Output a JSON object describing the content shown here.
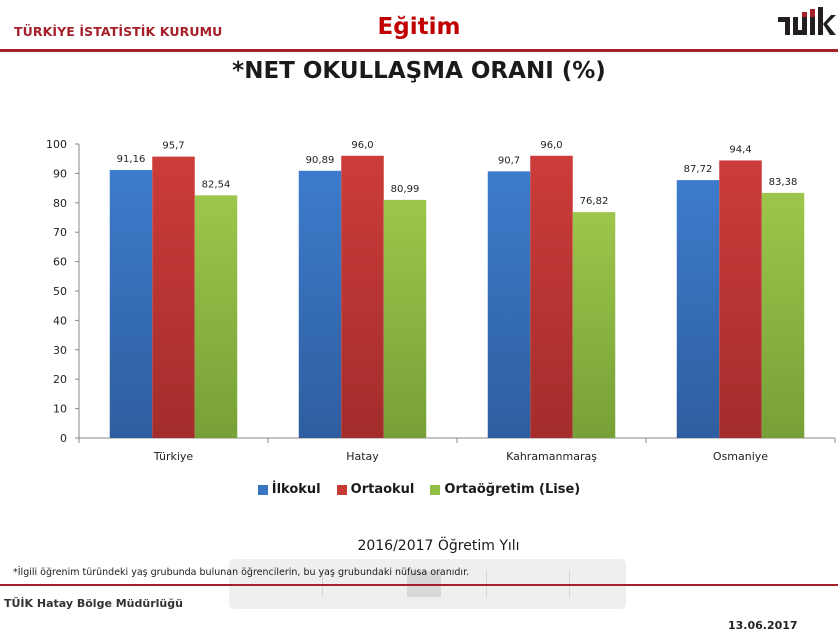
{
  "header": {
    "organization": "TÜRKİYE İSTATİSTİK KURUMU",
    "section": "Eğitim",
    "logo_text": "TÜİK"
  },
  "colors": {
    "accent": "#a6202a",
    "section_title": "#c00000",
    "series_ilkokul": "#3a75c4",
    "series_ortaokul": "#c83a38",
    "series_ortaogretim": "#93be45"
  },
  "chart_data": {
    "type": "bar",
    "title": "*NET OKULLAŞMA ORANI (%)",
    "subtitle": "2016/2017 Öğretim Yılı",
    "xlabel": "",
    "ylabel": "",
    "ylim": [
      0,
      100
    ],
    "yticks": [
      "0",
      "10",
      "20",
      "30",
      "40",
      "50",
      "60",
      "70",
      "80",
      "90",
      "100"
    ],
    "grid": false,
    "legend_position": "bottom",
    "categories": [
      "Türkiye",
      "Hatay",
      "Kahramanmaraş",
      "Osmaniye"
    ],
    "series": [
      {
        "name": "İlkokul",
        "values": [
          91.16,
          90.89,
          90.7,
          87.72
        ],
        "labels": [
          "91,16",
          "90,89",
          "90,7",
          "87,72"
        ]
      },
      {
        "name": "Ortaokul",
        "values": [
          95.7,
          96.0,
          96.0,
          94.4
        ],
        "labels": [
          "95,7",
          "96,0",
          "96,0",
          "94,4"
        ]
      },
      {
        "name": "Ortaöğretim (Lise)",
        "values": [
          82.54,
          80.99,
          76.82,
          83.38
        ],
        "labels": [
          "82,54",
          "80,99",
          "76,82",
          "83,38"
        ]
      }
    ]
  },
  "footnote": "*İlgili öğrenim türündeki yaş grubunda bulunan öğrencilerin, bu yaş  grubundaki nüfusa oranıdır.",
  "footer": {
    "organization": "TÜİK Hatay Bölge Müdürlüğü",
    "date": "13.06.2017"
  }
}
